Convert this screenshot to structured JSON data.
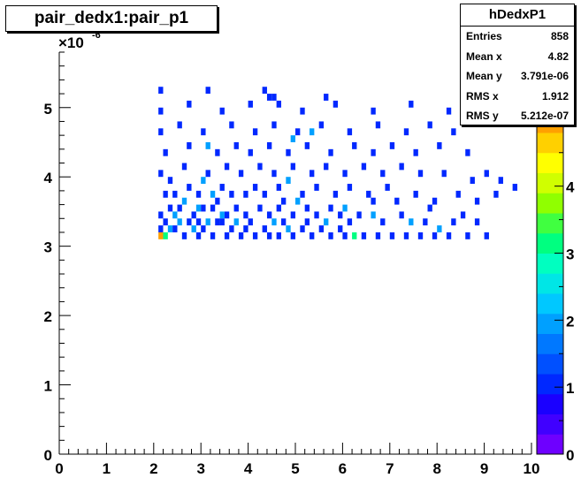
{
  "title": "pair_dedx1:pair_p1",
  "stats": {
    "name": "hDedxP1",
    "rows": [
      {
        "label": "Entries",
        "value": "858"
      },
      {
        "label": "Mean x",
        "value": "4.82"
      },
      {
        "label": "Mean y",
        "value": "3.791e-06"
      },
      {
        "label": "RMS x",
        "value": "1.912"
      },
      {
        "label": "RMS y",
        "value": "5.212e-07"
      }
    ]
  },
  "chart_data": {
    "type": "heatmap",
    "title": "pair_dedx1:pair_p1",
    "xlabel": "",
    "ylabel": "",
    "xlim": [
      0,
      10
    ],
    "ylim": [
      0,
      5.8
    ],
    "y_exponent_label": "×10",
    "y_exponent_power": "-6",
    "x_ticks": [
      "0",
      "1",
      "2",
      "3",
      "4",
      "5",
      "6",
      "7",
      "8",
      "9",
      "10"
    ],
    "y_ticks": [
      "0",
      "1",
      "2",
      "3",
      "4",
      "5"
    ],
    "z_ticks": [
      "0",
      "1",
      "2",
      "3",
      "4",
      "5"
    ],
    "zlim": [
      0,
      6
    ],
    "palette": [
      "#6e00ff",
      "#4000ff",
      "#1a00ff",
      "#0028ff",
      "#0050ff",
      "#0078ff",
      "#00a0ff",
      "#00c8ff",
      "#00e6e6",
      "#00ffc0",
      "#00ff80",
      "#40ff40",
      "#90ff00",
      "#d0ff00",
      "#ffff00",
      "#ffd000",
      "#ffa000",
      "#ff7000",
      "#ff3000",
      "#ff0000"
    ],
    "bin_width": [
      0.1,
      0.1
    ],
    "cells": [
      [
        2.1,
        3.1,
        5
      ],
      [
        2.2,
        3.1,
        3
      ],
      [
        2.3,
        3.2,
        2
      ],
      [
        2.5,
        3.3,
        2
      ],
      [
        2.8,
        3.2,
        2
      ],
      [
        3.1,
        3.3,
        2
      ],
      [
        3.4,
        3.4,
        2
      ],
      [
        2.6,
        3.6,
        2
      ],
      [
        3.2,
        3.7,
        2
      ],
      [
        4.5,
        3.3,
        2
      ],
      [
        4.8,
        3.2,
        2
      ],
      [
        6.2,
        3.1,
        3
      ],
      [
        8.0,
        3.2,
        2
      ],
      [
        6.0,
        3.5,
        2
      ],
      [
        4.8,
        3.9,
        2
      ],
      [
        4.9,
        4.5,
        2
      ],
      [
        5.3,
        4.6,
        2
      ],
      [
        3.1,
        4.4,
        2
      ],
      [
        2.9,
        3.5,
        2
      ],
      [
        3.7,
        3.3,
        2
      ],
      [
        5.6,
        3.3,
        2
      ],
      [
        2.4,
        3.4,
        2
      ],
      [
        3.0,
        3.9,
        2
      ],
      [
        6.6,
        3.4,
        2
      ],
      [
        7.4,
        3.3,
        2
      ],
      [
        5.0,
        3.6,
        2
      ],
      [
        2.1,
        3.2,
        1
      ],
      [
        2.2,
        3.3,
        1
      ],
      [
        2.4,
        3.2,
        1
      ],
      [
        2.6,
        3.1,
        1
      ],
      [
        2.7,
        3.3,
        1
      ],
      [
        2.9,
        3.1,
        1
      ],
      [
        3.0,
        3.2,
        1
      ],
      [
        3.2,
        3.1,
        1
      ],
      [
        3.3,
        3.3,
        1
      ],
      [
        3.5,
        3.1,
        1
      ],
      [
        3.6,
        3.2,
        1
      ],
      [
        3.8,
        3.1,
        1
      ],
      [
        3.9,
        3.2,
        1
      ],
      [
        4.0,
        3.3,
        1
      ],
      [
        4.1,
        3.1,
        1
      ],
      [
        4.3,
        3.2,
        1
      ],
      [
        4.4,
        3.1,
        1
      ],
      [
        4.6,
        3.1,
        1
      ],
      [
        4.7,
        3.3,
        1
      ],
      [
        4.9,
        3.1,
        1
      ],
      [
        5.1,
        3.2,
        1
      ],
      [
        5.3,
        3.1,
        1
      ],
      [
        5.5,
        3.2,
        1
      ],
      [
        5.7,
        3.1,
        1
      ],
      [
        5.9,
        3.2,
        1
      ],
      [
        6.0,
        3.1,
        1
      ],
      [
        6.4,
        3.1,
        1
      ],
      [
        6.7,
        3.1,
        1
      ],
      [
        7.0,
        3.1,
        1
      ],
      [
        7.3,
        3.1,
        1
      ],
      [
        7.6,
        3.1,
        1
      ],
      [
        7.9,
        3.1,
        1
      ],
      [
        8.2,
        3.1,
        1
      ],
      [
        8.6,
        3.1,
        1
      ],
      [
        9.0,
        3.1,
        1
      ],
      [
        2.1,
        3.4,
        1
      ],
      [
        2.3,
        3.5,
        1
      ],
      [
        2.5,
        3.5,
        1
      ],
      [
        2.8,
        3.4,
        1
      ],
      [
        3.0,
        3.5,
        1
      ],
      [
        3.3,
        3.6,
        1
      ],
      [
        3.5,
        3.4,
        1
      ],
      [
        3.7,
        3.5,
        1
      ],
      [
        3.9,
        3.4,
        1
      ],
      [
        4.2,
        3.5,
        1
      ],
      [
        4.4,
        3.4,
        1
      ],
      [
        4.6,
        3.5,
        1
      ],
      [
        4.9,
        3.4,
        1
      ],
      [
        5.2,
        3.5,
        1
      ],
      [
        5.4,
        3.4,
        1
      ],
      [
        5.7,
        3.5,
        1
      ],
      [
        5.9,
        3.4,
        1
      ],
      [
        6.3,
        3.4,
        1
      ],
      [
        6.8,
        3.3,
        1
      ],
      [
        7.2,
        3.4,
        1
      ],
      [
        7.7,
        3.3,
        1
      ],
      [
        8.3,
        3.3,
        1
      ],
      [
        8.5,
        3.4,
        1
      ],
      [
        2.2,
        3.7,
        1
      ],
      [
        2.4,
        3.7,
        1
      ],
      [
        2.7,
        3.8,
        1
      ],
      [
        2.9,
        3.7,
        1
      ],
      [
        3.4,
        3.8,
        1
      ],
      [
        3.6,
        3.7,
        1
      ],
      [
        3.9,
        3.7,
        1
      ],
      [
        4.1,
        3.8,
        1
      ],
      [
        4.3,
        3.7,
        1
      ],
      [
        4.6,
        3.8,
        1
      ],
      [
        5.1,
        3.7,
        1
      ],
      [
        5.4,
        3.8,
        1
      ],
      [
        5.8,
        3.7,
        1
      ],
      [
        6.1,
        3.8,
        1
      ],
      [
        6.5,
        3.7,
        1
      ],
      [
        6.9,
        3.8,
        1
      ],
      [
        7.1,
        3.6,
        1
      ],
      [
        7.5,
        3.7,
        1
      ],
      [
        7.9,
        3.6,
        1
      ],
      [
        8.4,
        3.7,
        1
      ],
      [
        8.8,
        3.6,
        1
      ],
      [
        9.2,
        3.7,
        1
      ],
      [
        9.6,
        3.8,
        1
      ],
      [
        2.1,
        4.0,
        1
      ],
      [
        2.6,
        4.1,
        1
      ],
      [
        3.1,
        4.0,
        1
      ],
      [
        3.5,
        4.1,
        1
      ],
      [
        3.8,
        4.0,
        1
      ],
      [
        4.2,
        4.1,
        1
      ],
      [
        4.5,
        4.0,
        1
      ],
      [
        4.9,
        4.1,
        1
      ],
      [
        5.3,
        4.0,
        1
      ],
      [
        5.6,
        4.1,
        1
      ],
      [
        6.0,
        4.0,
        1
      ],
      [
        6.4,
        4.1,
        1
      ],
      [
        6.8,
        4.0,
        1
      ],
      [
        7.2,
        4.1,
        1
      ],
      [
        7.6,
        4.0,
        1
      ],
      [
        8.1,
        4.0,
        1
      ],
      [
        8.7,
        3.9,
        1
      ],
      [
        9.0,
        4.0,
        1
      ],
      [
        9.3,
        3.9,
        1
      ],
      [
        2.2,
        4.3,
        1
      ],
      [
        2.7,
        4.4,
        1
      ],
      [
        3.3,
        4.3,
        1
      ],
      [
        3.7,
        4.4,
        1
      ],
      [
        4.0,
        4.3,
        1
      ],
      [
        4.4,
        4.4,
        1
      ],
      [
        4.8,
        4.3,
        1
      ],
      [
        5.2,
        4.4,
        1
      ],
      [
        5.7,
        4.3,
        1
      ],
      [
        6.2,
        4.4,
        1
      ],
      [
        6.6,
        4.3,
        1
      ],
      [
        7.0,
        4.4,
        1
      ],
      [
        7.5,
        4.3,
        1
      ],
      [
        8.0,
        4.4,
        1
      ],
      [
        8.6,
        4.3,
        1
      ],
      [
        2.1,
        4.6,
        1
      ],
      [
        2.5,
        4.7,
        1
      ],
      [
        3.0,
        4.6,
        1
      ],
      [
        3.6,
        4.7,
        1
      ],
      [
        4.1,
        4.6,
        1
      ],
      [
        4.5,
        4.7,
        1
      ],
      [
        5.0,
        4.6,
        1
      ],
      [
        5.5,
        4.7,
        1
      ],
      [
        6.1,
        4.6,
        1
      ],
      [
        6.7,
        4.7,
        1
      ],
      [
        7.3,
        4.6,
        1
      ],
      [
        7.8,
        4.7,
        1
      ],
      [
        8.3,
        4.6,
        1
      ],
      [
        2.1,
        4.9,
        1
      ],
      [
        2.7,
        5.0,
        1
      ],
      [
        3.4,
        4.9,
        1
      ],
      [
        4.0,
        5.0,
        1
      ],
      [
        4.5,
        5.1,
        1
      ],
      [
        4.6,
        5.0,
        1
      ],
      [
        5.1,
        4.9,
        1
      ],
      [
        5.8,
        5.0,
        1
      ],
      [
        6.6,
        4.9,
        1
      ],
      [
        7.4,
        5.0,
        1
      ],
      [
        8.2,
        4.9,
        1
      ],
      [
        2.1,
        5.2,
        1
      ],
      [
        3.1,
        5.2,
        1
      ],
      [
        4.3,
        5.2,
        1
      ],
      [
        4.4,
        5.1,
        1
      ],
      [
        5.6,
        5.1,
        1
      ],
      [
        2.3,
        3.9,
        1
      ],
      [
        3.2,
        3.5,
        1
      ],
      [
        4.7,
        3.6,
        1
      ],
      [
        6.6,
        3.6,
        1
      ],
      [
        7.8,
        3.5,
        1
      ],
      [
        3.4,
        3.3,
        1
      ],
      [
        2.9,
        3.3,
        1
      ],
      [
        5.2,
        3.3,
        1
      ],
      [
        6.1,
        3.3,
        1
      ],
      [
        8.8,
        3.3,
        1
      ]
    ]
  }
}
